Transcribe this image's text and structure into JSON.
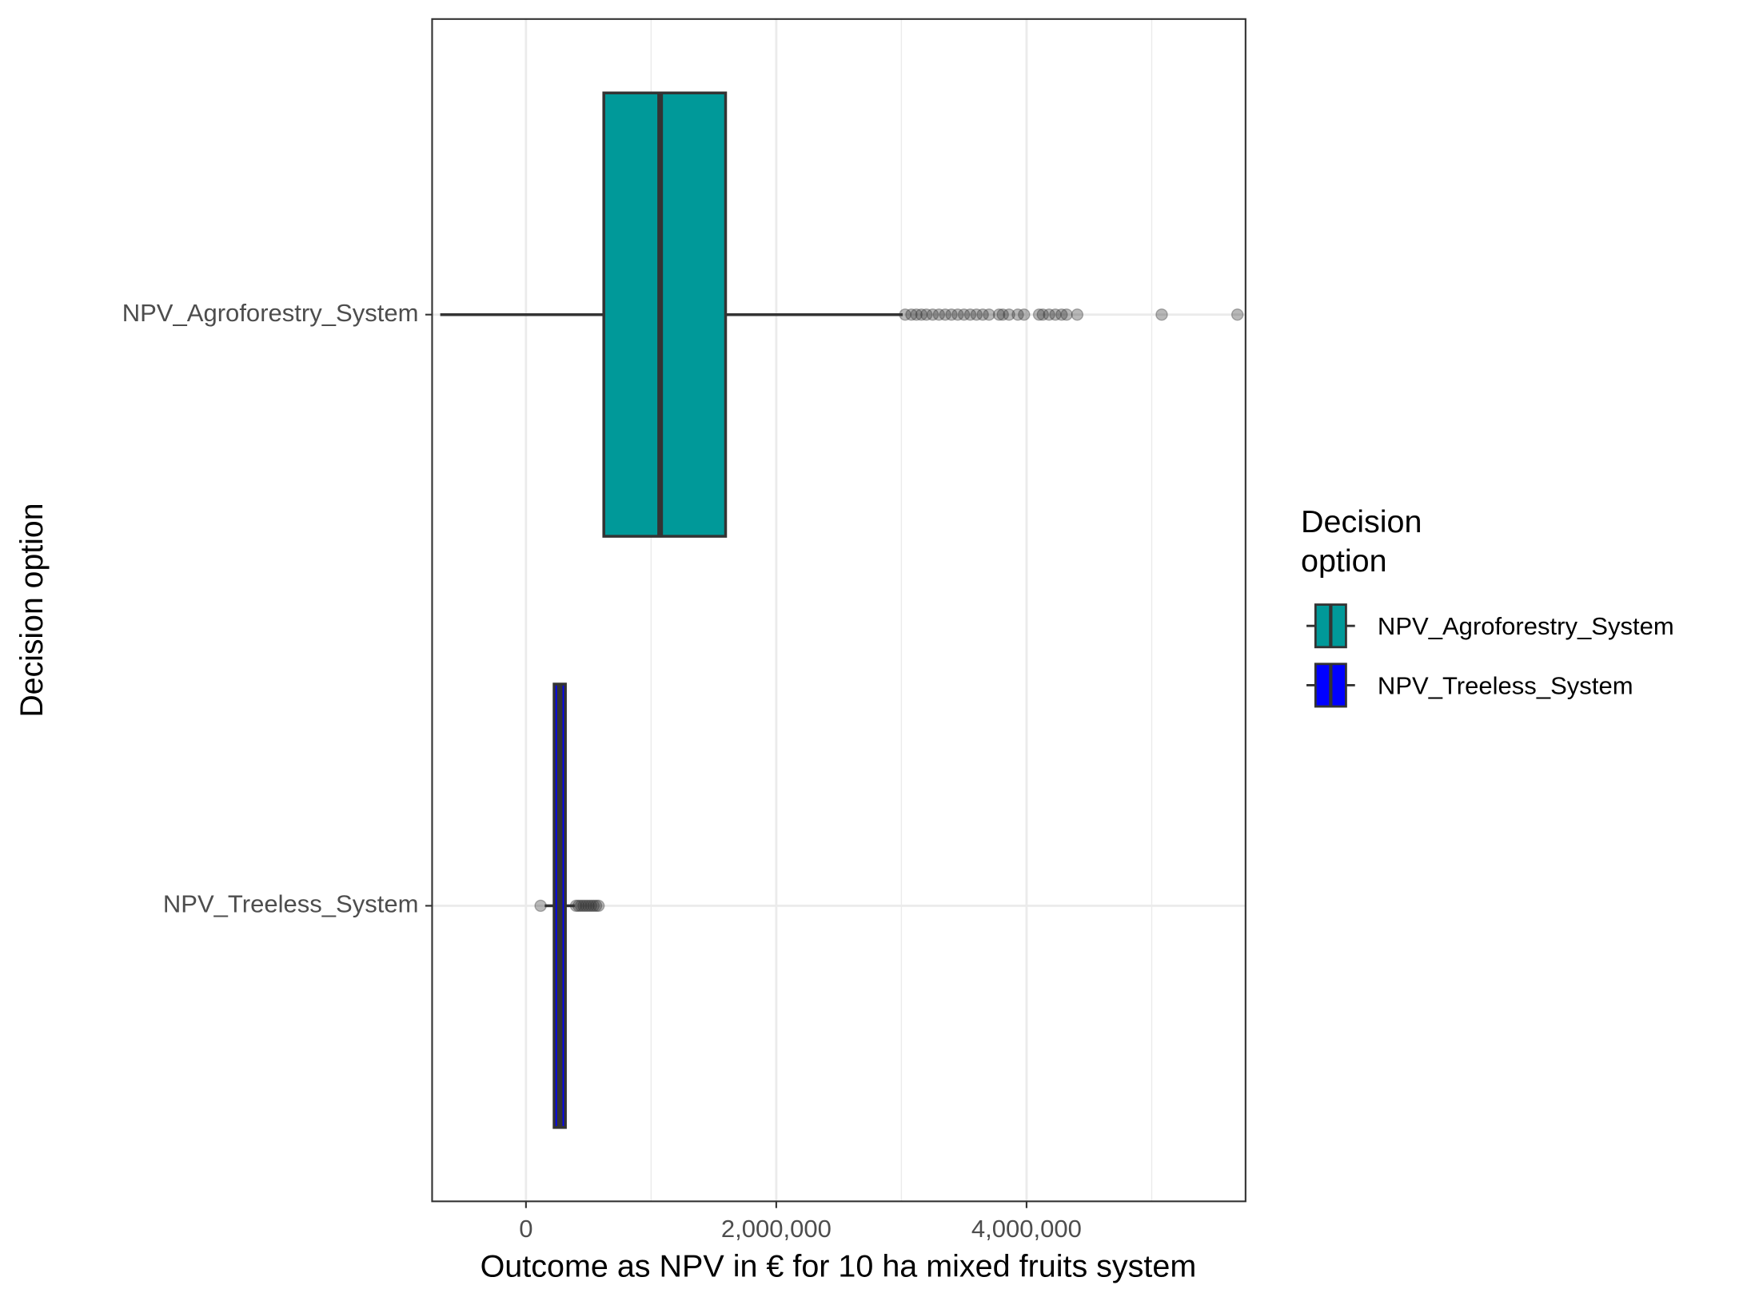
{
  "chart_data": {
    "type": "boxplot",
    "x_label": "Outcome as NPV in € for 10 ha mixed fruits system",
    "y_label": "Decision option",
    "legend_title_lines": [
      "Decision",
      "option"
    ],
    "legend_position": "right",
    "grid": true,
    "categories": [
      "NPV_Agroforestry_System",
      "NPV_Treeless_System"
    ],
    "xlim": [
      -750000,
      5750000
    ],
    "xticks": [
      0,
      {
        "value": 2000000,
        "label": "2,000,000"
      },
      {
        "value": 4000000,
        "label": "4,000,000"
      }
    ],
    "minor_xticks": [
      1000000,
      3000000,
      5000000
    ],
    "series": [
      {
        "name": "NPV_Agroforestry_System",
        "color": "#009999",
        "min": -685000,
        "q1": 622000,
        "median": 1072000,
        "q3": 1595000,
        "max": 3010000,
        "outliers": [
          3030000,
          3080000,
          3120000,
          3160000,
          3200000,
          3250000,
          3300000,
          3350000,
          3400000,
          3450000,
          3500000,
          3550000,
          3600000,
          3650000,
          3700000,
          3780000,
          3810000,
          3860000,
          3930000,
          3980000,
          4100000,
          4130000,
          4180000,
          4230000,
          4280000,
          4320000,
          4405000,
          5080000,
          5685000
        ]
      },
      {
        "name": "NPV_Treeless_System",
        "color": "#0000ff",
        "min": 150000,
        "q1": 225000,
        "median": 270000,
        "q3": 315000,
        "max": 390000,
        "outliers": [
          117000,
          400000,
          420000,
          440000,
          460000,
          480000,
          500000,
          520000,
          540000,
          560000,
          580000
        ]
      }
    ]
  }
}
